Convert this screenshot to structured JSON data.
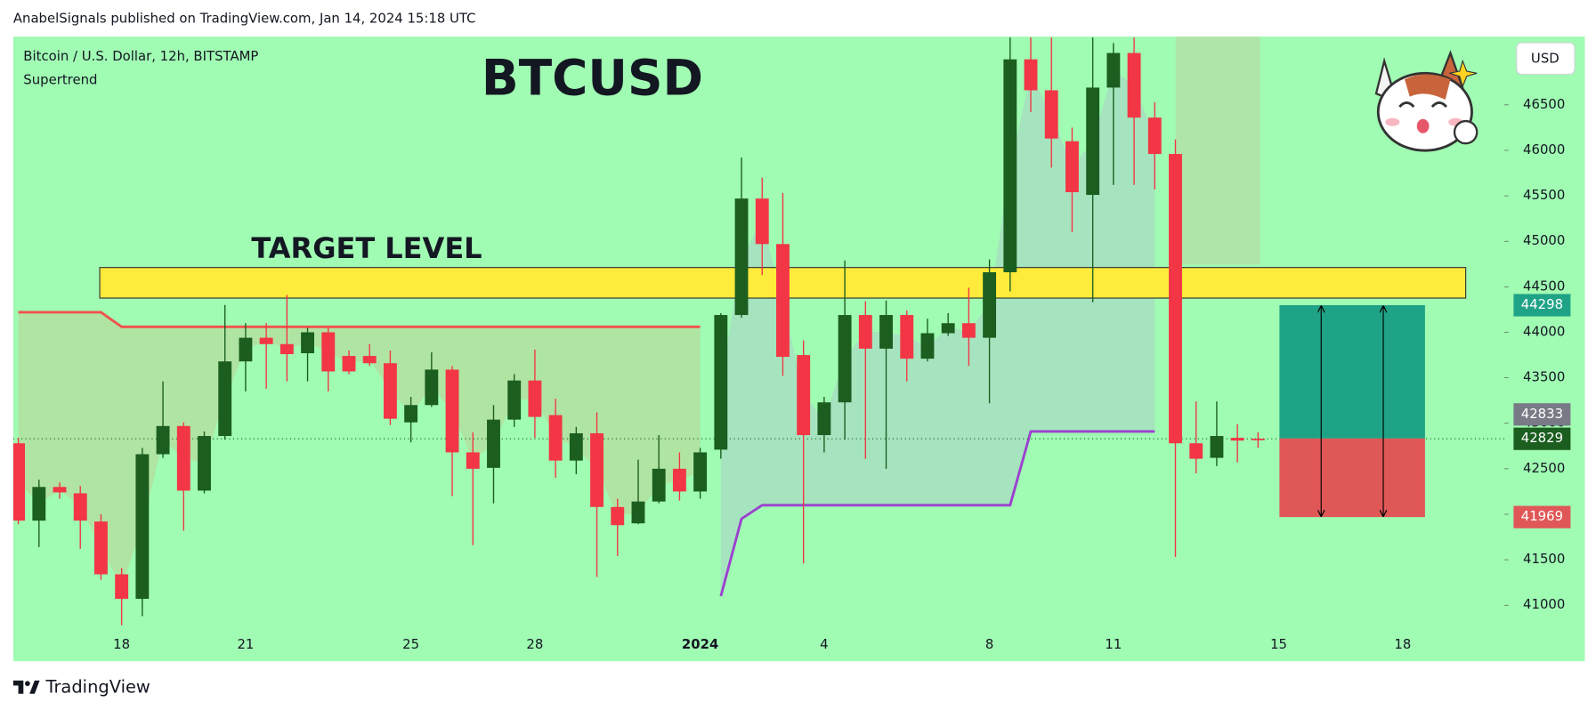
{
  "header": "AnabelSignals published on TradingView.com, Jan 14, 2024 15:18 UTC",
  "footer": "TradingView",
  "currency_button": "USD",
  "chart_data": {
    "type": "candlestick",
    "title": "BTCUSD",
    "symbol_label": "Bitcoin / U.S. Dollar, 12h, BITSTAMP",
    "categories": [
      null,
      null,
      null,
      null,
      null,
      "18",
      null,
      null,
      null,
      null,
      null,
      "21",
      null,
      null,
      null,
      null,
      null,
      null,
      null,
      "25",
      null,
      null,
      null,
      null,
      null,
      "28",
      null,
      null,
      null,
      null,
      null,
      null,
      null,
      "2024",
      null,
      null,
      null,
      null,
      null,
      "4",
      null,
      null,
      null,
      null,
      null,
      null,
      null,
      "8",
      null,
      null,
      null,
      null,
      null,
      "11",
      null,
      null,
      null,
      null,
      null,
      null,
      null,
      "15",
      null,
      null,
      null,
      null,
      null,
      "18"
    ],
    "open": [
      42780,
      41930,
      42300,
      42230,
      41920,
      41340,
      41070,
      42660,
      42970,
      42260,
      42860,
      43680,
      43940,
      43870,
      43770,
      44000,
      43740,
      43740,
      43660,
      43010,
      43200,
      43590,
      42680,
      42510,
      43040,
      43470,
      43090,
      42590,
      42890,
      42080,
      41900,
      42140,
      42500,
      42250,
      42710,
      44190,
      45470,
      44970,
      43750,
      42870,
      43230,
      44190,
      43820,
      44190,
      43710,
      43990,
      44100,
      43940,
      44660,
      47000,
      46660,
      46100,
      45510,
      46690,
      47070,
      46360,
      45960,
      42780,
      42620,
      42840,
      42830,
      null,
      null,
      null,
      null,
      null,
      null,
      null
    ],
    "high": [
      42840,
      42380,
      42350,
      42310,
      42000,
      41410,
      42730,
      43460,
      43010,
      42910,
      44300,
      44100,
      44100,
      44410,
      44050,
      44050,
      43800,
      43870,
      43800,
      43290,
      43780,
      43630,
      42900,
      43200,
      43540,
      43810,
      43270,
      42960,
      43120,
      42170,
      42600,
      42870,
      42680,
      42730,
      44210,
      45920,
      45700,
      45530,
      43910,
      43290,
      44790,
      44340,
      44350,
      44240,
      44150,
      44210,
      44490,
      44800,
      47240,
      47240,
      47240,
      46250,
      47240,
      47180,
      47240,
      46530,
      46120,
      43240,
      43240,
      42990,
      42900,
      null,
      null,
      null,
      null,
      null,
      null,
      null
    ],
    "low": [
      41890,
      41640,
      42170,
      41620,
      41280,
      40780,
      40880,
      42620,
      41820,
      42230,
      42820,
      43350,
      43380,
      43460,
      43460,
      43350,
      43540,
      43630,
      42980,
      42790,
      43180,
      42200,
      41660,
      42120,
      42960,
      42840,
      42400,
      42440,
      41310,
      41540,
      41890,
      42120,
      42150,
      42170,
      42610,
      44160,
      44630,
      43520,
      41460,
      42680,
      42820,
      42610,
      42500,
      43460,
      43680,
      43960,
      43630,
      43220,
      44450,
      46420,
      45810,
      45100,
      44330,
      45620,
      45620,
      45570,
      41530,
      42450,
      42530,
      42570,
      42730,
      null,
      null,
      null,
      null,
      null,
      null,
      null
    ],
    "close": [
      41930,
      42300,
      42240,
      41930,
      41340,
      41070,
      42660,
      42970,
      42260,
      42860,
      43680,
      43940,
      43870,
      43760,
      44000,
      43570,
      43570,
      43660,
      43050,
      43200,
      43590,
      42680,
      42500,
      43040,
      43470,
      43070,
      42590,
      42890,
      42080,
      41880,
      42140,
      42500,
      42250,
      42680,
      44190,
      45470,
      44970,
      43730,
      42870,
      43230,
      44190,
      43820,
      44190,
      43710,
      43990,
      44100,
      43940,
      44660,
      47000,
      46660,
      46130,
      45540,
      46690,
      47070,
      46360,
      45960,
      42780,
      42610,
      42860,
      42810,
      42829,
      null,
      null,
      null,
      null,
      null,
      null,
      null
    ],
    "up_color": "#1b5e20",
    "down_color": "#f23645",
    "supertrend": {
      "name": "Supertrend",
      "down": [
        44220,
        44220,
        44220,
        44220,
        44220,
        44060,
        44060,
        44060,
        44060,
        44060,
        44060,
        44060,
        44060,
        44060,
        44060,
        44060,
        44060,
        44060,
        44060,
        44060,
        44060,
        44060,
        44060,
        44060,
        44060,
        44060,
        44060,
        44060,
        44060,
        44060,
        44060,
        44060,
        44060,
        44060,
        null,
        null,
        null,
        null,
        null,
        null,
        null,
        null,
        null,
        null,
        null,
        null,
        null,
        null,
        null,
        null,
        null,
        null,
        null,
        null,
        null,
        null,
        null,
        null,
        null,
        null,
        null,
        null,
        null,
        null,
        null,
        null,
        null,
        null
      ],
      "up": [
        null,
        null,
        null,
        null,
        null,
        null,
        null,
        null,
        null,
        null,
        null,
        null,
        null,
        null,
        null,
        null,
        null,
        null,
        null,
        null,
        null,
        null,
        null,
        null,
        null,
        null,
        null,
        null,
        null,
        null,
        null,
        null,
        null,
        null,
        41100,
        41950,
        42100,
        42100,
        42100,
        42100,
        42100,
        42100,
        42100,
        42100,
        42100,
        42100,
        42100,
        42100,
        42100,
        42910,
        42910,
        42910,
        42910,
        42910,
        42910,
        42910,
        null,
        null,
        null,
        null,
        null,
        null,
        null,
        null,
        null,
        null,
        null,
        null
      ],
      "down_color": "#f0524d",
      "up_color": "#9c3fd0",
      "down_fill": "#b3df9f",
      "up_fill": "#a6dfbf"
    },
    "target_zone": {
      "label": "TARGET LEVEL",
      "range": [
        44376,
        44712
      ],
      "color": "#ffeb3b"
    },
    "position": {
      "target": 44298,
      "entry": 42833,
      "stop": 41969,
      "target_color": "#1fa386",
      "stop_color": "#e05757",
      "entry_color": "#787b86"
    },
    "ylim": [
      40385,
      47250
    ],
    "yticks": [
      41000,
      41500,
      42000,
      42500,
      43000,
      43500,
      44000,
      44500,
      45000,
      45500,
      46000,
      46500
    ],
    "background": "#a0fbb3"
  }
}
